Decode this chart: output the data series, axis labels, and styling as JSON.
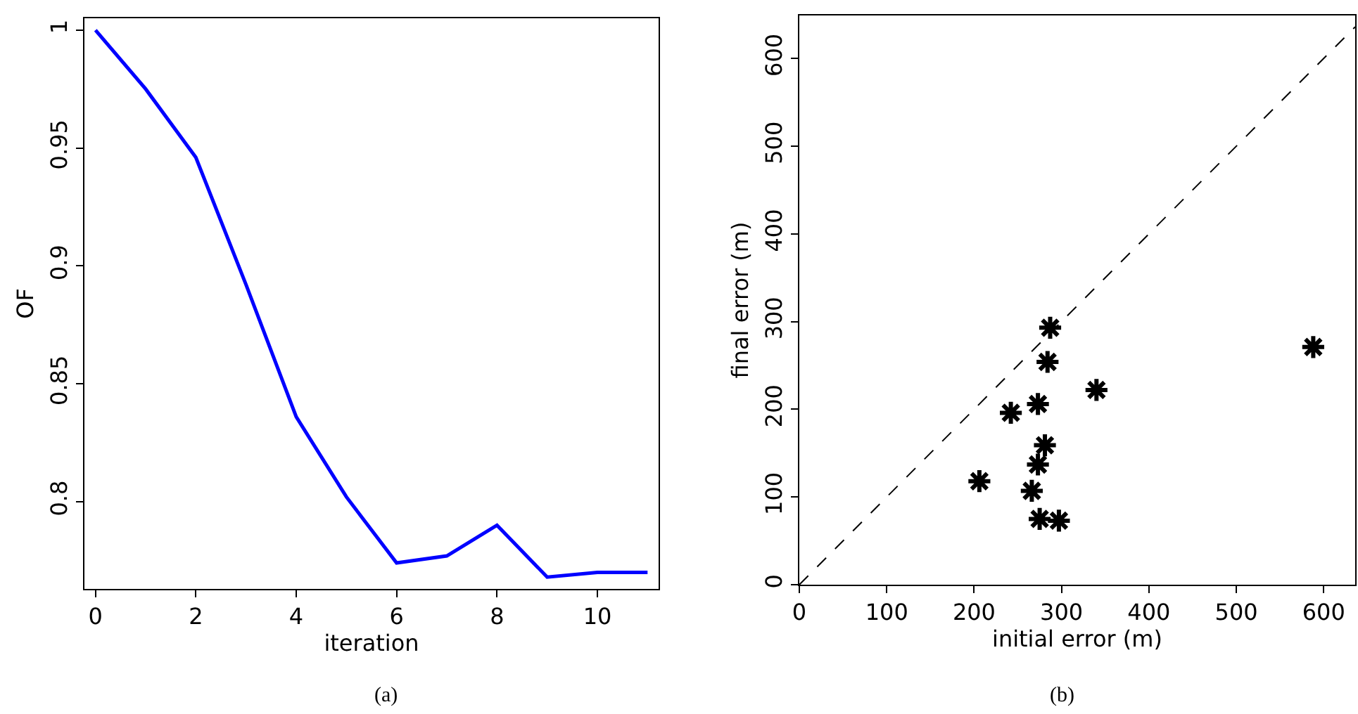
{
  "chart_data": [
    {
      "type": "line",
      "xlabel": "iteration",
      "ylabel": "OF",
      "annotations": [
        "(a)"
      ],
      "marker": "none",
      "line_style": "solid",
      "x": [
        0,
        1,
        2,
        3,
        4,
        5,
        6,
        7,
        8,
        9,
        10,
        11
      ],
      "series": [
        {
          "color": "#0000ff",
          "values": [
            1.0,
            0.975,
            0.946,
            0.892,
            0.836,
            0.802,
            0.774,
            0.777,
            0.79,
            0.768,
            0.77,
            0.77
          ]
        }
      ],
      "xlim": [
        -0.22,
        11.22
      ],
      "xticks": [
        0,
        2,
        4,
        6,
        8,
        10
      ],
      "ylim": [
        0.763,
        1.005
      ],
      "yticks": [
        0.8,
        0.85,
        0.9,
        0.95,
        1
      ]
    },
    {
      "type": "scatter",
      "xlabel": "initial error (m)",
      "ylabel": "final error (m)",
      "annotations": [
        "(b)"
      ],
      "marker": "cross",
      "series": [
        {
          "color": "#000000",
          "x": [
            287,
            284,
            340,
            588,
            242,
            273,
            281,
            273,
            206,
            266,
            275,
            297
          ],
          "values": [
            293,
            254,
            222,
            271,
            196,
            206,
            159,
            137,
            118,
            107,
            75,
            73
          ]
        },
        {
          "type": "line",
          "color": "#000000",
          "line_style": "dashed",
          "marker": "none",
          "x": [
            0,
            636
          ],
          "values": [
            0,
            636
          ]
        }
      ],
      "xlim": [
        0,
        636
      ],
      "xticks": [
        0,
        100,
        200,
        300,
        400,
        500,
        600
      ],
      "ylim": [
        0,
        649
      ],
      "yticks": [
        0,
        100,
        200,
        300,
        400,
        500,
        600
      ]
    }
  ]
}
